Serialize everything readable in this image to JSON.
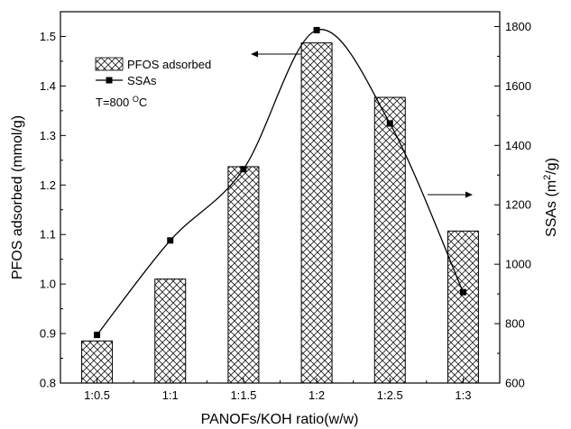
{
  "chart_data": {
    "type": "bar",
    "categories": [
      "1:0.5",
      "1:1",
      "1:1.5",
      "1:2",
      "1:2.5",
      "1:3"
    ],
    "series": [
      {
        "name": "PFOS adsorbed",
        "type": "bar",
        "axis": "left",
        "values": [
          0.885,
          1.01,
          1.237,
          1.487,
          1.377,
          1.107
        ],
        "pattern": "crosshatch"
      },
      {
        "name": "SSAs",
        "type": "line",
        "axis": "right",
        "marker": "square",
        "values": [
          762,
          1080,
          1320,
          1788,
          1474,
          906
        ]
      }
    ],
    "xlabel": "PANOFs/KOH ratio(w/w)",
    "ylabel": "PFOS adsorbed (mmol/g)",
    "y2label": {
      "main": "SSAs (m",
      "sup": "2",
      "end": "/g)"
    },
    "ylim": [
      0.8,
      1.55
    ],
    "y2lim": [
      600,
      1850
    ],
    "yticks": [
      "0.8",
      "0.9",
      "1.0",
      "1.1",
      "1.2",
      "1.3",
      "1.4",
      "1.5"
    ],
    "y2ticks": [
      "600",
      "800",
      "1000",
      "1200",
      "1400",
      "1600",
      "1800"
    ],
    "annotation": {
      "main": "T=800 ",
      "sup": "O",
      "end": "C"
    },
    "legend_position": "top-left",
    "grid": false,
    "arrows": [
      {
        "direction": "left",
        "points_to": "left-axis"
      },
      {
        "direction": "right",
        "points_to": "right-axis"
      }
    ]
  }
}
